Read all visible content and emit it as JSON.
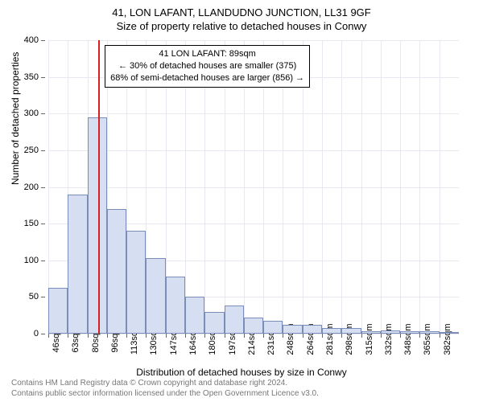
{
  "title": "41, LON LAFANT, LLANDUDNO JUNCTION, LL31 9GF",
  "subtitle": "Size of property relative to detached houses in Conwy",
  "x_axis_title": "Distribution of detached houses by size in Conwy",
  "y_axis_title": "Number of detached properties",
  "chart": {
    "type": "histogram",
    "background_color": "#ffffff",
    "grid_color": "#e8e9f0",
    "axis_color": "#666666",
    "bar_fill": "#d6dff2",
    "bar_border": "#7a8db8",
    "marker_color": "#d62020",
    "ylim": [
      0,
      400
    ],
    "yticks": [
      0,
      50,
      100,
      150,
      200,
      250,
      300,
      350,
      400
    ],
    "x_categories": [
      "46sqm",
      "63sqm",
      "80sqm",
      "96sqm",
      "113sqm",
      "130sqm",
      "147sqm",
      "164sqm",
      "180sqm",
      "197sqm",
      "214sqm",
      "231sqm",
      "248sqm",
      "264sqm",
      "281sqm",
      "298sqm",
      "315sqm",
      "332sqm",
      "348sqm",
      "365sqm",
      "382sqm"
    ],
    "bar_values": [
      62,
      190,
      295,
      170,
      140,
      103,
      78,
      50,
      30,
      38,
      22,
      18,
      12,
      12,
      8,
      8,
      3,
      4,
      3,
      3,
      2
    ],
    "marker_x_value": "89sqm",
    "marker_bin_index": 2,
    "marker_fraction_in_bin": 0.56,
    "title_fontsize": 13,
    "label_fontsize": 11,
    "axis_title_fontsize": 12
  },
  "annotation": {
    "line1": "41 LON LAFANT: 89sqm",
    "line2": "← 30% of detached houses are smaller (375)",
    "line3": "68% of semi-detached houses are larger (856) →",
    "border_color": "#000000",
    "background_color": "#ffffff",
    "fontsize": 11
  },
  "footer": {
    "line1": "Contains HM Land Registry data © Crown copyright and database right 2024.",
    "line2": "Contains public sector information licensed under the Open Government Licence v3.0.",
    "color": "#777777",
    "fontsize": 10
  }
}
